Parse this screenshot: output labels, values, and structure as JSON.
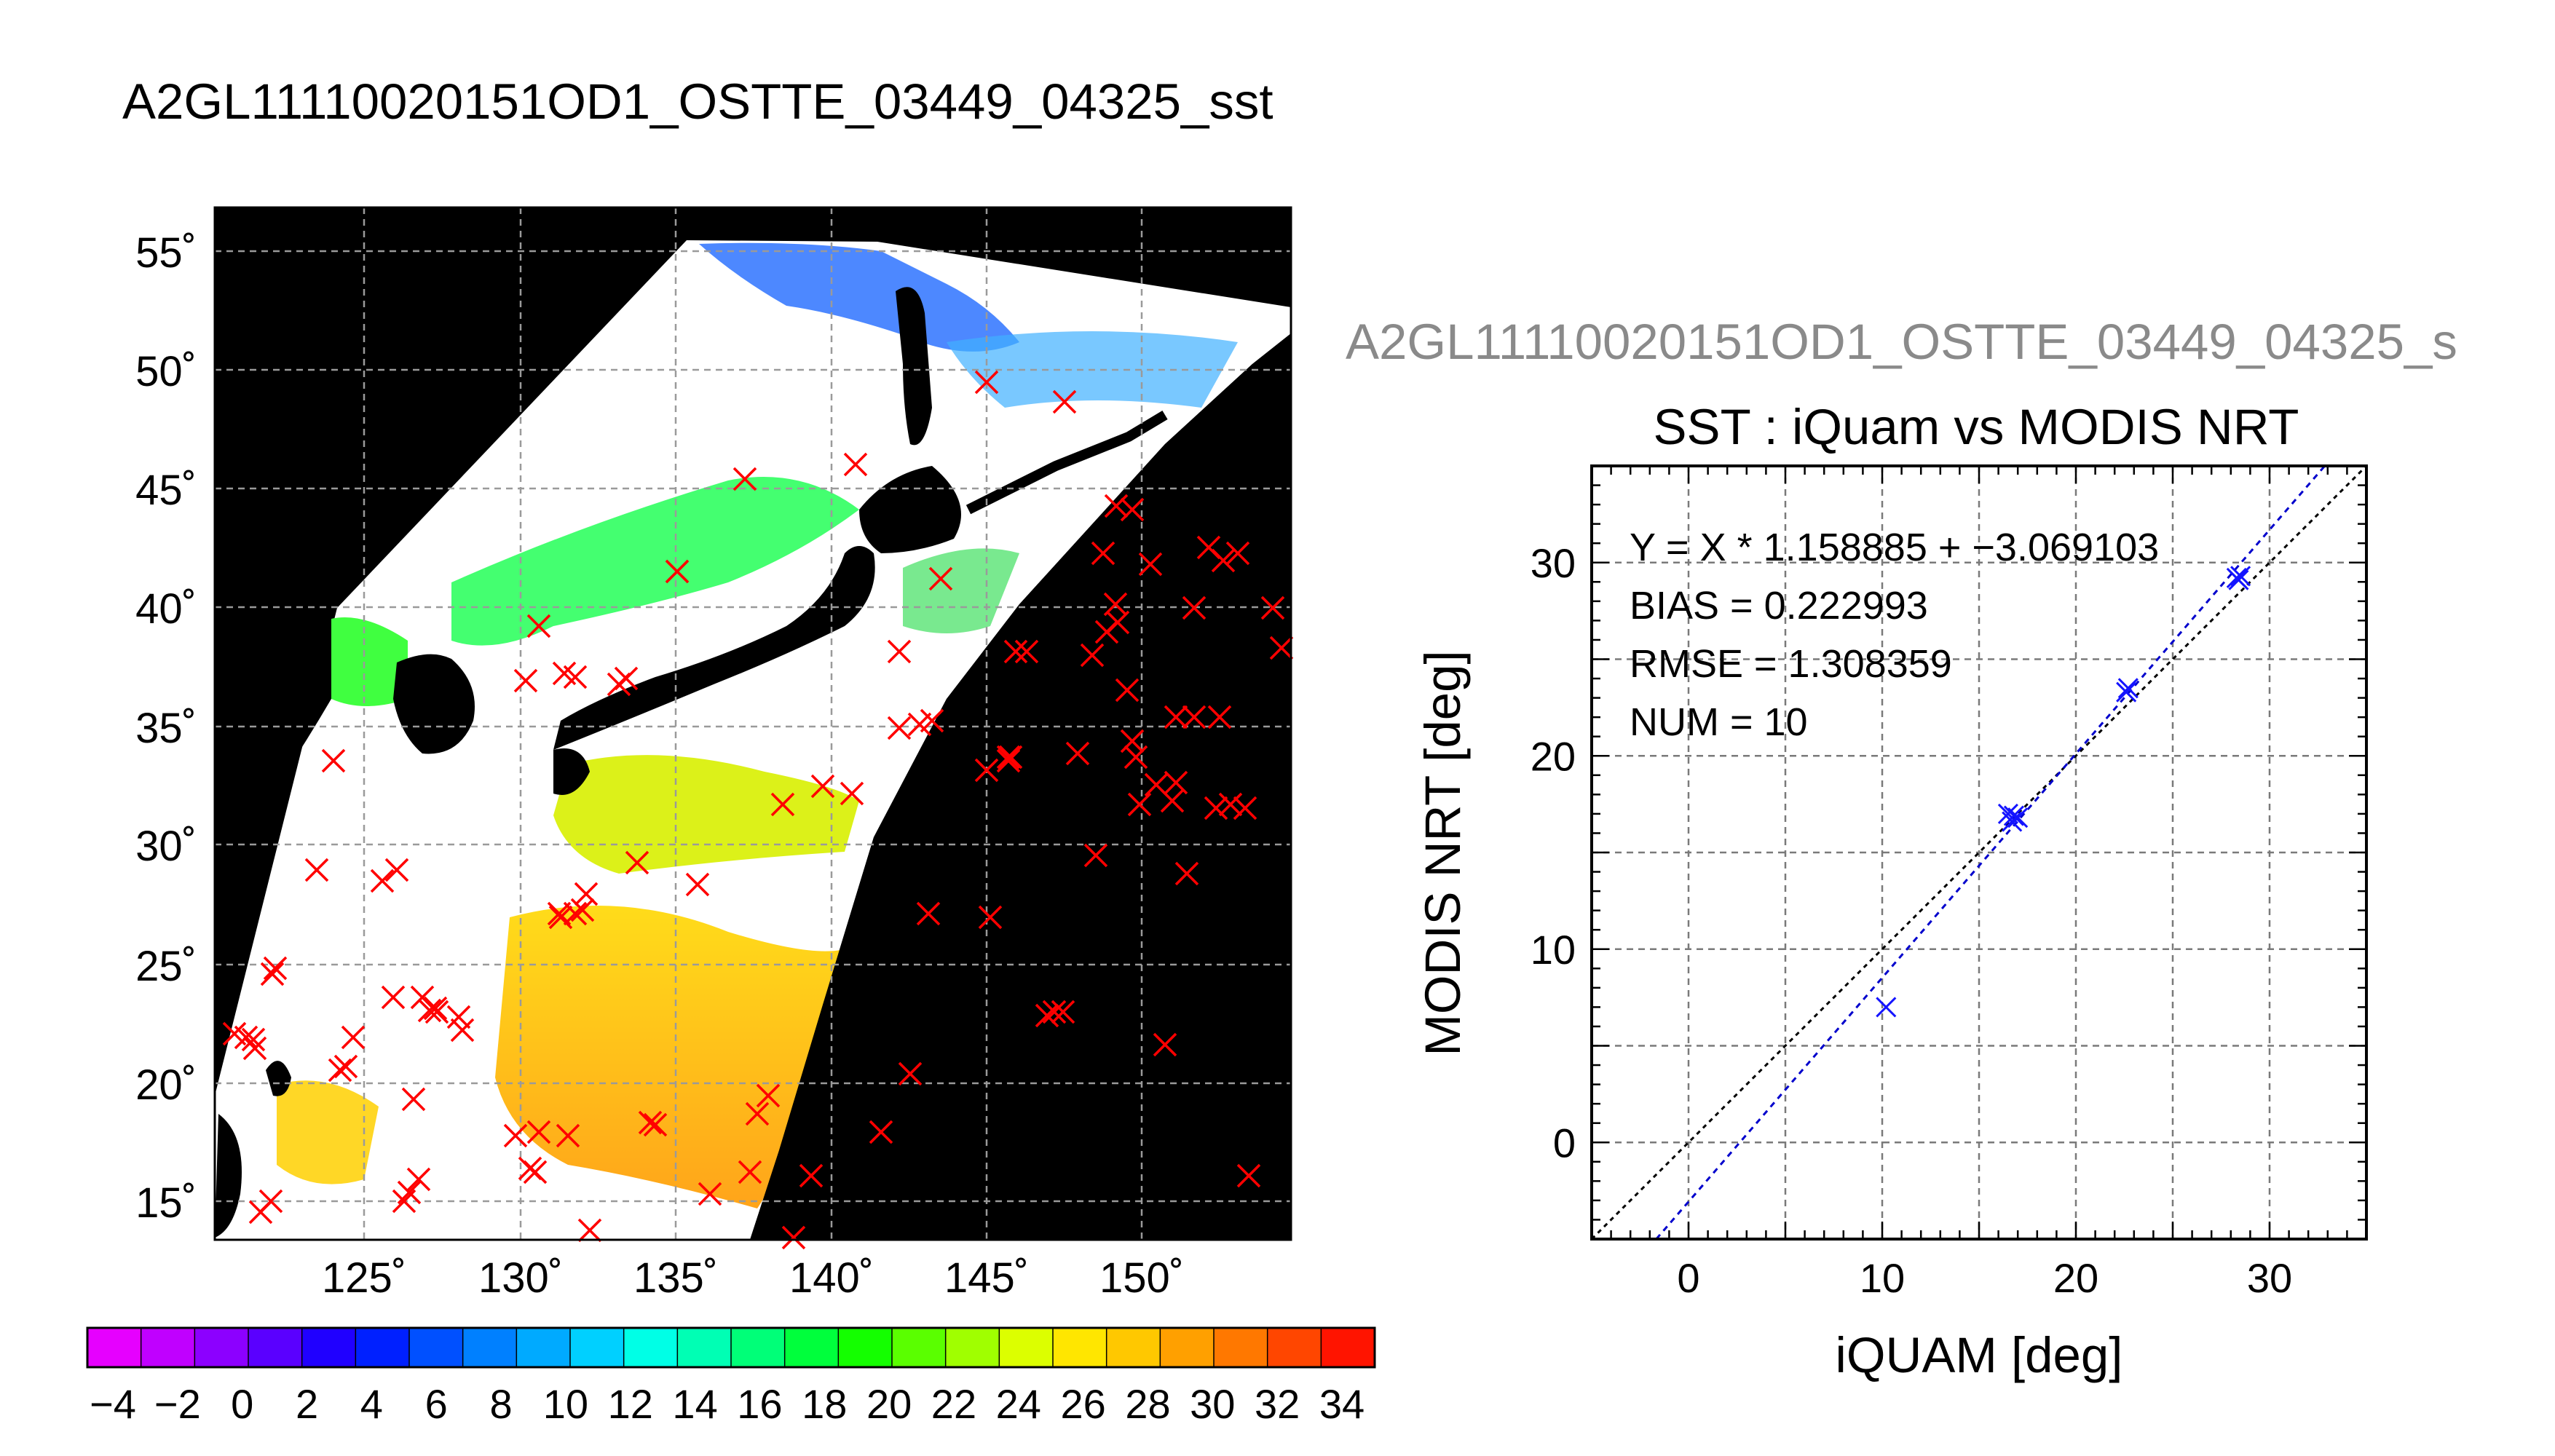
{
  "header": {
    "title": "A2GL11110020151OD1_OSTTE_03449_04325_sst"
  },
  "map": {
    "lat_labels": [
      "55˚",
      "50˚",
      "45˚",
      "40˚",
      "35˚",
      "30˚",
      "25˚",
      "20˚",
      "15˚"
    ],
    "lon_labels": [
      "125˚",
      "130˚",
      "135˚",
      "140˚",
      "145˚",
      "150˚"
    ],
    "background_color": "#000000",
    "land_color": "#000000",
    "cloud_color": "#ffffff",
    "in_situ_marker_color": "#ff0000",
    "in_situ_marker_symbol": "×"
  },
  "colorbar": {
    "tick_labels": [
      "−4",
      "−2",
      "0",
      "2",
      "4",
      "6",
      "8",
      "10",
      "12",
      "14",
      "16",
      "18",
      "20",
      "22",
      "24",
      "26",
      "28",
      "30",
      "32",
      "34"
    ],
    "colors": [
      "#e600ff",
      "#c000ff",
      "#8c00ff",
      "#5a00ff",
      "#2000ff",
      "#0020ff",
      "#0050ff",
      "#0080ff",
      "#00aaff",
      "#00d0ff",
      "#00ffe6",
      "#00ffb4",
      "#00ff78",
      "#00ff3c",
      "#14ff00",
      "#5aff00",
      "#a0ff00",
      "#dcff00",
      "#ffe600",
      "#ffc800",
      "#ffa000",
      "#ff7800",
      "#ff4600",
      "#ff1400"
    ]
  },
  "scatter": {
    "title_right": "A2GL11110020151OD1_OSTTE_03449_04325_s",
    "plot_title": "SST : iQuam vs MODIS NRT",
    "xlabel": "iQUAM [deg]",
    "ylabel": "MODIS NRT [deg]",
    "stats": {
      "equation": "Y = X * 1.158885 + −3.069103",
      "bias": "BIAS = 0.222993",
      "rmse": "RMSE = 1.308359",
      "num": "NUM = 10"
    },
    "x_ticks": [
      "0",
      "10",
      "20",
      "30"
    ],
    "y_ticks": [
      "0",
      "10",
      "20",
      "30"
    ]
  },
  "chart_data": {
    "type": "scatter",
    "title": "SST : iQuam vs MODIS NRT",
    "xlabel": "iQUAM [deg]",
    "ylabel": "MODIS NRT [deg]",
    "xlim": [
      -5,
      35
    ],
    "ylim": [
      -5,
      35
    ],
    "grid": true,
    "points": [
      {
        "x": 10.2,
        "y": 7.0
      },
      {
        "x": 16.5,
        "y": 17.0
      },
      {
        "x": 16.7,
        "y": 16.6
      },
      {
        "x": 16.8,
        "y": 16.9
      },
      {
        "x": 17.0,
        "y": 16.8
      },
      {
        "x": 22.6,
        "y": 23.3
      },
      {
        "x": 22.7,
        "y": 23.5
      },
      {
        "x": 28.3,
        "y": 29.2
      },
      {
        "x": 28.5,
        "y": 29.3
      },
      {
        "x": 28.4,
        "y": 29.1
      }
    ],
    "fit": {
      "slope": 1.158885,
      "intercept": -3.069103
    },
    "identity_line": true,
    "marker_color": "#1414ff",
    "fit_line_color": "#0000cc"
  }
}
